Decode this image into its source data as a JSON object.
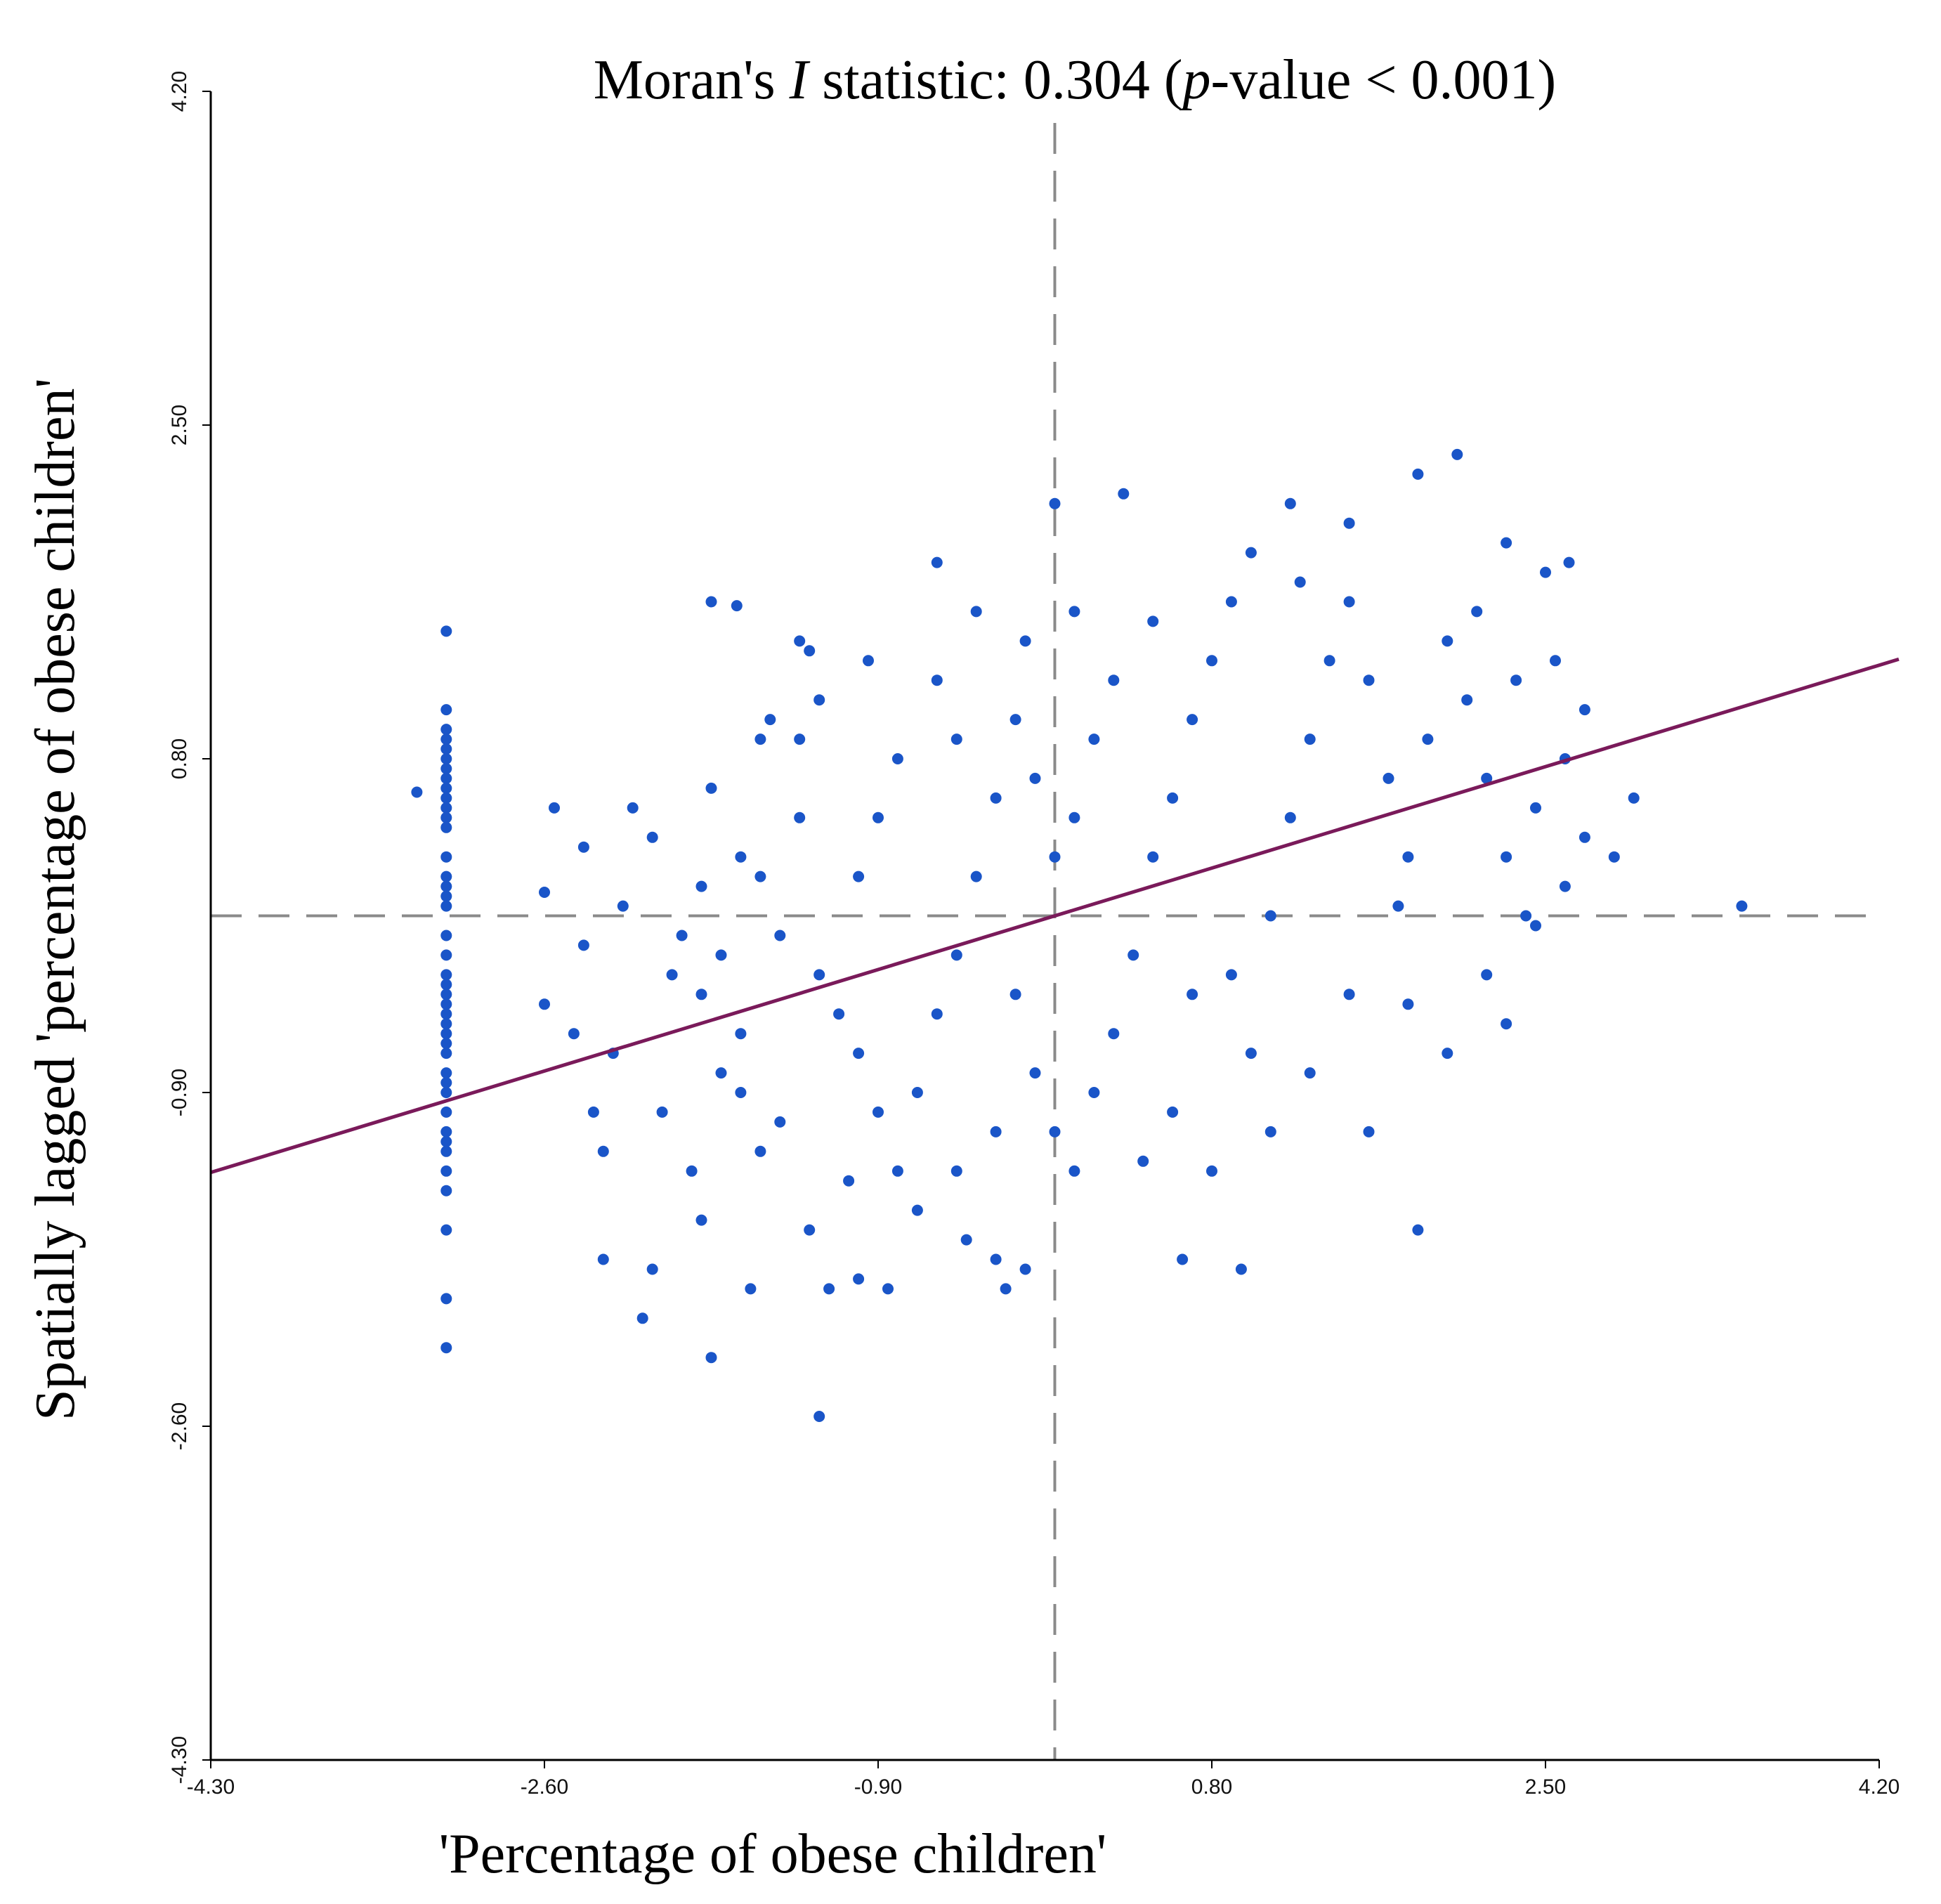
{
  "chart_data": {
    "type": "scatter",
    "title_parts": [
      "Moran's ",
      "I",
      " statistic: 0.304 (",
      "p",
      "-value < 0.001)"
    ],
    "moran_i": 0.304,
    "p_value": "< 0.001",
    "xlabel": "'Percentage of obese children'",
    "ylabel": "Spatially lagged 'percentage of obese children'",
    "xlim": [
      -4.3,
      4.2
    ],
    "ylim": [
      -4.3,
      4.2
    ],
    "xticks": [
      "-4.30",
      "-2.60",
      "-0.90",
      "0.80",
      "2.50",
      "4.20"
    ],
    "yticks": [
      "-4.30",
      "-2.60",
      "-0.90",
      "0.80",
      "2.50",
      "4.20"
    ],
    "reference_x": 0,
    "reference_y": 0,
    "regression": {
      "slope": 0.304,
      "intercept": 0
    },
    "point_color": "#1a55c8",
    "line_color": "#7a1a5a",
    "points": [
      [
        -3.1,
        0.8
      ],
      [
        -3.1,
        1.45
      ],
      [
        -3.1,
        1.05
      ],
      [
        -3.1,
        0.95
      ],
      [
        -3.1,
        0.9
      ],
      [
        -3.1,
        0.85
      ],
      [
        -3.1,
        0.75
      ],
      [
        -3.1,
        0.7
      ],
      [
        -3.1,
        0.65
      ],
      [
        -3.1,
        0.6
      ],
      [
        -3.1,
        0.55
      ],
      [
        -3.1,
        0.5
      ],
      [
        -3.1,
        0.45
      ],
      [
        -3.1,
        0.3
      ],
      [
        -3.1,
        0.2
      ],
      [
        -3.1,
        0.15
      ],
      [
        -3.1,
        0.1
      ],
      [
        -3.1,
        0.05
      ],
      [
        -3.1,
        -0.1
      ],
      [
        -3.1,
        -0.2
      ],
      [
        -3.1,
        -0.3
      ],
      [
        -3.1,
        -0.35
      ],
      [
        -3.1,
        -0.4
      ],
      [
        -3.1,
        -0.45
      ],
      [
        -3.1,
        -0.5
      ],
      [
        -3.1,
        -0.55
      ],
      [
        -3.1,
        -0.6
      ],
      [
        -3.1,
        -0.65
      ],
      [
        -3.1,
        -0.7
      ],
      [
        -3.1,
        -0.8
      ],
      [
        -3.1,
        -0.85
      ],
      [
        -3.1,
        -0.9
      ],
      [
        -3.1,
        -1.0
      ],
      [
        -3.1,
        -1.1
      ],
      [
        -3.1,
        -1.15
      ],
      [
        -3.1,
        -1.2
      ],
      [
        -3.1,
        -1.3
      ],
      [
        -3.1,
        -1.4
      ],
      [
        -3.1,
        -1.6
      ],
      [
        -3.1,
        -1.95
      ],
      [
        -3.1,
        -2.2
      ],
      [
        -3.25,
        0.63
      ],
      [
        -2.6,
        0.12
      ],
      [
        -2.6,
        -0.45
      ],
      [
        -2.55,
        0.55
      ],
      [
        -2.4,
        -0.15
      ],
      [
        -2.3,
        -1.2
      ],
      [
        -2.3,
        -1.75
      ],
      [
        -2.15,
        0.55
      ],
      [
        -2.1,
        -2.05
      ],
      [
        -2.05,
        -1.8
      ],
      [
        -1.8,
        -1.55
      ],
      [
        -1.75,
        -2.25
      ],
      [
        -1.75,
        1.6
      ],
      [
        -1.62,
        1.58
      ],
      [
        -1.55,
        -1.9
      ],
      [
        -1.5,
        0.9
      ],
      [
        -1.3,
        1.4
      ],
      [
        -1.25,
        1.35
      ],
      [
        -1.2,
        -2.55
      ],
      [
        -1.15,
        -1.9
      ],
      [
        -1.0,
        -1.85
      ],
      [
        -0.85,
        -1.9
      ],
      [
        -0.6,
        1.8
      ],
      [
        -0.4,
        1.55
      ],
      [
        -0.3,
        -1.75
      ],
      [
        -0.25,
        -1.9
      ],
      [
        -0.15,
        -1.8
      ],
      [
        0.0,
        2.1
      ],
      [
        0.1,
        -1.3
      ],
      [
        0.1,
        1.55
      ],
      [
        0.35,
        2.15
      ],
      [
        0.65,
        -1.75
      ],
      [
        0.95,
        -1.8
      ],
      [
        1.2,
        2.1
      ],
      [
        1.5,
        2.0
      ],
      [
        1.8,
        -0.45
      ],
      [
        1.85,
        -1.6
      ],
      [
        1.85,
        2.25
      ],
      [
        2.05,
        2.35
      ],
      [
        2.3,
        1.9
      ],
      [
        2.5,
        1.75
      ],
      [
        2.62,
        1.8
      ],
      [
        2.7,
        1.05
      ],
      [
        2.85,
        0.3
      ],
      [
        2.95,
        0.6
      ],
      [
        3.5,
        0.05
      ],
      [
        2.6,
        0.8
      ],
      [
        2.7,
        0.4
      ],
      [
        2.45,
        0.55
      ],
      [
        2.3,
        -0.55
      ],
      [
        2.2,
        -0.3
      ],
      [
        2.0,
        -0.7
      ],
      [
        1.75,
        0.05
      ],
      [
        2.4,
        0.0
      ],
      [
        1.6,
        -1.1
      ],
      [
        -1.2,
        1.1
      ],
      [
        -1.3,
        0.9
      ],
      [
        -1.6,
        0.3
      ],
      [
        -1.8,
        0.15
      ],
      [
        -1.9,
        -0.1
      ],
      [
        -1.95,
        -0.3
      ],
      [
        -1.8,
        -0.4
      ],
      [
        -1.7,
        -0.2
      ],
      [
        -1.6,
        -0.6
      ],
      [
        -1.7,
        -0.8
      ],
      [
        -1.6,
        -0.9
      ],
      [
        -1.5,
        -1.2
      ],
      [
        -1.4,
        -1.05
      ],
      [
        -1.4,
        -0.1
      ],
      [
        -1.5,
        0.2
      ],
      [
        -1.3,
        0.5
      ],
      [
        -1.2,
        -0.3
      ],
      [
        -1.1,
        -0.5
      ],
      [
        -1.0,
        -0.7
      ],
      [
        -1.0,
        0.2
      ],
      [
        -0.9,
        0.5
      ],
      [
        -0.8,
        0.8
      ],
      [
        -0.9,
        -1.0
      ],
      [
        -0.8,
        -1.3
      ],
      [
        -0.7,
        -0.9
      ],
      [
        -0.6,
        -0.5
      ],
      [
        -0.5,
        -0.2
      ],
      [
        -0.4,
        0.2
      ],
      [
        -0.3,
        0.6
      ],
      [
        -0.5,
        0.9
      ],
      [
        -0.6,
        1.2
      ],
      [
        -0.2,
        1.0
      ],
      [
        -0.1,
        0.7
      ],
      [
        -0.2,
        -0.4
      ],
      [
        -0.1,
        -0.8
      ],
      [
        -0.3,
        -1.1
      ],
      [
        -0.5,
        -1.3
      ],
      [
        -0.7,
        -1.5
      ],
      [
        0.0,
        -1.1
      ],
      [
        0.2,
        -0.9
      ],
      [
        0.3,
        -0.6
      ],
      [
        0.4,
        -0.2
      ],
      [
        0.5,
        0.3
      ],
      [
        0.6,
        0.6
      ],
      [
        0.7,
        1.0
      ],
      [
        0.8,
        1.3
      ],
      [
        0.5,
        1.5
      ],
      [
        0.3,
        1.2
      ],
      [
        0.2,
        0.9
      ],
      [
        0.1,
        0.5
      ],
      [
        0.0,
        0.3
      ],
      [
        0.9,
        -0.3
      ],
      [
        1.0,
        -0.7
      ],
      [
        1.1,
        0.0
      ],
      [
        1.2,
        0.5
      ],
      [
        1.3,
        0.9
      ],
      [
        1.4,
        1.3
      ],
      [
        1.5,
        1.6
      ],
      [
        1.6,
        1.2
      ],
      [
        1.7,
        0.7
      ],
      [
        1.8,
        0.3
      ],
      [
        1.9,
        0.9
      ],
      [
        2.0,
        1.4
      ],
      [
        2.1,
        1.1
      ],
      [
        2.2,
        0.7
      ],
      [
        2.3,
        0.3
      ],
      [
        1.5,
        -0.4
      ],
      [
        1.3,
        -0.8
      ],
      [
        1.1,
        -1.1
      ],
      [
        0.8,
        -1.3
      ],
      [
        0.6,
        -1.0
      ],
      [
        0.7,
        -0.4
      ],
      [
        -1.45,
        1.0
      ],
      [
        -2.25,
        -0.7
      ],
      [
        -2.2,
        0.05
      ],
      [
        -2.05,
        0.4
      ],
      [
        -2.0,
        -1.0
      ],
      [
        -1.85,
        -1.3
      ],
      [
        -1.25,
        -1.6
      ],
      [
        -1.05,
        -1.35
      ],
      [
        -0.45,
        -1.65
      ],
      [
        0.45,
        -1.25
      ],
      [
        1.0,
        1.85
      ],
      [
        1.25,
        1.7
      ],
      [
        0.9,
        1.6
      ],
      [
        2.15,
        1.55
      ],
      [
        2.35,
        1.2
      ],
      [
        2.55,
        1.3
      ],
      [
        2.45,
        -0.05
      ],
      [
        2.6,
        0.15
      ],
      [
        -2.45,
        -0.6
      ],
      [
        -2.35,
        -1.0
      ],
      [
        -2.4,
        0.35
      ],
      [
        -1.75,
        0.65
      ],
      [
        -0.95,
        1.3
      ],
      [
        -0.15,
        1.4
      ]
    ]
  }
}
